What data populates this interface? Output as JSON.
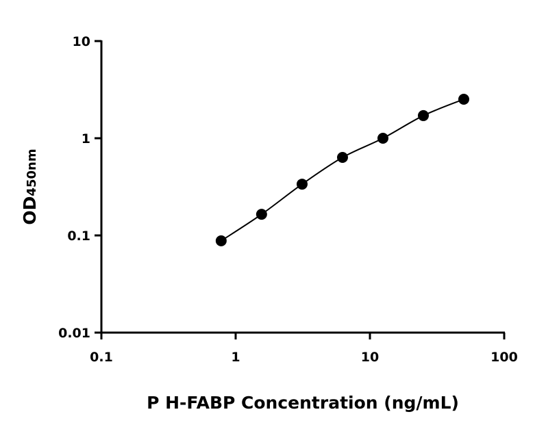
{
  "chart_data": {
    "type": "scatter",
    "title": "",
    "xlabel": "P H-FABP Concentration (ng/mL)",
    "ylabel": "OD",
    "ylabel_subscript": "450nm",
    "x_scale": "log",
    "y_scale": "log",
    "xlim": [
      0.1,
      100
    ],
    "ylim": [
      0.01,
      10
    ],
    "x_ticks": [
      "0.1",
      "1",
      "10",
      "100"
    ],
    "y_ticks": [
      "0.01",
      "0.1",
      "1",
      "10"
    ],
    "grid": false,
    "fit_curve": true,
    "series": [
      {
        "x": [
          0.78,
          1.56,
          3.125,
          6.25,
          12.5,
          25,
          50
        ],
        "y": [
          0.088,
          0.165,
          0.337,
          0.635,
          1.0,
          1.71,
          2.52
        ],
        "color": "#000000"
      }
    ]
  }
}
